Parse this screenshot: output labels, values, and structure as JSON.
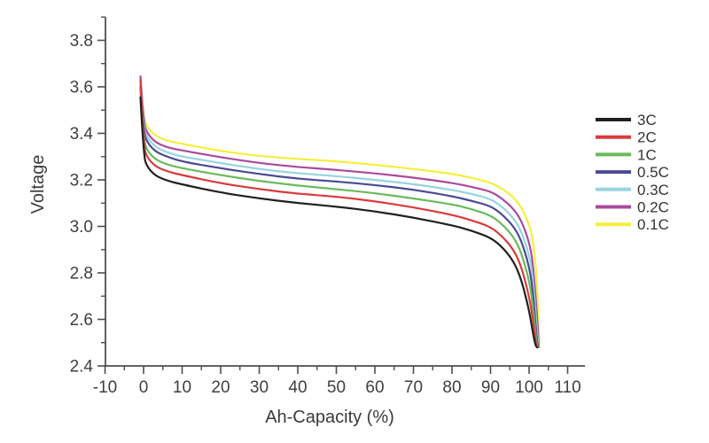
{
  "chart_data": {
    "type": "line",
    "title": "",
    "xlabel": "Ah-Capacity (%)",
    "ylabel": "Voltage",
    "xlim": [
      -10,
      114.5
    ],
    "ylim": [
      2.4,
      3.9
    ],
    "x_ticks": [
      -10,
      0,
      10,
      20,
      30,
      40,
      50,
      60,
      70,
      80,
      90,
      100,
      110
    ],
    "x_minor_step": 5,
    "y_ticks": [
      2.4,
      2.6,
      2.8,
      3.0,
      3.2,
      3.4,
      3.6,
      3.8
    ],
    "y_minor_step": 0.1,
    "grid": false,
    "legend_position": "right",
    "axis_color": "#4d4d4d",
    "series": [
      {
        "name": "3C",
        "color": "#231f20",
        "points": [
          [
            -0.8,
            3.555
          ],
          [
            0,
            3.3
          ],
          [
            1,
            3.255
          ],
          [
            3,
            3.218
          ],
          [
            6,
            3.197
          ],
          [
            10,
            3.18
          ],
          [
            20,
            3.145
          ],
          [
            30,
            3.12
          ],
          [
            40,
            3.1
          ],
          [
            50,
            3.085
          ],
          [
            60,
            3.065
          ],
          [
            70,
            3.038
          ],
          [
            80,
            3.005
          ],
          [
            85,
            2.982
          ],
          [
            90,
            2.952
          ],
          [
            93,
            2.912
          ],
          [
            96,
            2.85
          ],
          [
            98,
            2.772
          ],
          [
            100,
            2.64
          ],
          [
            100.8,
            2.56
          ],
          [
            101.6,
            2.49
          ],
          [
            102.05,
            2.48
          ]
        ]
      },
      {
        "name": "2C",
        "color": "#d83b3c",
        "points": [
          [
            -0.8,
            3.63
          ],
          [
            0,
            3.34
          ],
          [
            1,
            3.295
          ],
          [
            3,
            3.258
          ],
          [
            6,
            3.237
          ],
          [
            10,
            3.22
          ],
          [
            20,
            3.185
          ],
          [
            30,
            3.16
          ],
          [
            40,
            3.14
          ],
          [
            50,
            3.128
          ],
          [
            60,
            3.108
          ],
          [
            70,
            3.082
          ],
          [
            80,
            3.05
          ],
          [
            85,
            3.027
          ],
          [
            90,
            2.998
          ],
          [
            93,
            2.958
          ],
          [
            96,
            2.9
          ],
          [
            98,
            2.828
          ],
          [
            100,
            2.7
          ],
          [
            101,
            2.6
          ],
          [
            101.8,
            2.49
          ],
          [
            102.15,
            2.48
          ]
        ]
      },
      {
        "name": "1C",
        "color": "#6aba5c",
        "points": [
          [
            -0.8,
            3.58
          ],
          [
            0,
            3.37
          ],
          [
            1,
            3.325
          ],
          [
            3,
            3.288
          ],
          [
            6,
            3.266
          ],
          [
            10,
            3.25
          ],
          [
            20,
            3.22
          ],
          [
            30,
            3.195
          ],
          [
            40,
            3.175
          ],
          [
            50,
            3.16
          ],
          [
            60,
            3.143
          ],
          [
            70,
            3.12
          ],
          [
            80,
            3.095
          ],
          [
            85,
            3.075
          ],
          [
            90,
            3.048
          ],
          [
            93,
            3.01
          ],
          [
            96,
            2.955
          ],
          [
            98,
            2.888
          ],
          [
            100,
            2.77
          ],
          [
            101,
            2.66
          ],
          [
            101.9,
            2.5
          ],
          [
            102.25,
            2.48
          ]
        ]
      },
      {
        "name": "0.5C",
        "color": "#494a93",
        "points": [
          [
            -0.8,
            3.6
          ],
          [
            0,
            3.405
          ],
          [
            1,
            3.36
          ],
          [
            3,
            3.322
          ],
          [
            6,
            3.3
          ],
          [
            10,
            3.278
          ],
          [
            20,
            3.25
          ],
          [
            30,
            3.225
          ],
          [
            40,
            3.205
          ],
          [
            50,
            3.193
          ],
          [
            60,
            3.178
          ],
          [
            70,
            3.158
          ],
          [
            80,
            3.13
          ],
          [
            85,
            3.11
          ],
          [
            90,
            3.088
          ],
          [
            93,
            3.052
          ],
          [
            96,
            3.0
          ],
          [
            98,
            2.94
          ],
          [
            100,
            2.83
          ],
          [
            101,
            2.72
          ],
          [
            101.95,
            2.52
          ],
          [
            102.35,
            2.48
          ]
        ]
      },
      {
        "name": "0.3C",
        "color": "#98d4df",
        "points": [
          [
            -0.8,
            3.615
          ],
          [
            0,
            3.425
          ],
          [
            1,
            3.38
          ],
          [
            3,
            3.342
          ],
          [
            6,
            3.318
          ],
          [
            10,
            3.3
          ],
          [
            20,
            3.272
          ],
          [
            30,
            3.246
          ],
          [
            40,
            3.228
          ],
          [
            50,
            3.216
          ],
          [
            60,
            3.2
          ],
          [
            70,
            3.182
          ],
          [
            80,
            3.157
          ],
          [
            85,
            3.14
          ],
          [
            90,
            3.118
          ],
          [
            93,
            3.085
          ],
          [
            96,
            3.035
          ],
          [
            98,
            2.98
          ],
          [
            100,
            2.88
          ],
          [
            101,
            2.78
          ],
          [
            102,
            2.56
          ],
          [
            102.45,
            2.48
          ]
        ]
      },
      {
        "name": "0.2C",
        "color": "#a94a9d",
        "points": [
          [
            -0.8,
            3.645
          ],
          [
            0,
            3.445
          ],
          [
            1,
            3.4
          ],
          [
            3,
            3.362
          ],
          [
            6,
            3.34
          ],
          [
            10,
            3.326
          ],
          [
            20,
            3.297
          ],
          [
            30,
            3.272
          ],
          [
            40,
            3.255
          ],
          [
            50,
            3.243
          ],
          [
            60,
            3.228
          ],
          [
            70,
            3.21
          ],
          [
            80,
            3.187
          ],
          [
            85,
            3.17
          ],
          [
            90,
            3.151
          ],
          [
            93,
            3.12
          ],
          [
            96,
            3.075
          ],
          [
            98,
            3.025
          ],
          [
            100,
            2.935
          ],
          [
            101,
            2.845
          ],
          [
            102,
            2.63
          ],
          [
            102.55,
            2.48
          ]
        ]
      },
      {
        "name": "0.1C",
        "color": "#f4ef3b",
        "points": [
          [
            -0.8,
            3.6
          ],
          [
            0,
            3.47
          ],
          [
            1,
            3.425
          ],
          [
            3,
            3.39
          ],
          [
            6,
            3.368
          ],
          [
            10,
            3.355
          ],
          [
            20,
            3.324
          ],
          [
            30,
            3.302
          ],
          [
            40,
            3.29
          ],
          [
            50,
            3.28
          ],
          [
            60,
            3.265
          ],
          [
            70,
            3.247
          ],
          [
            80,
            3.226
          ],
          [
            85,
            3.21
          ],
          [
            90,
            3.188
          ],
          [
            93,
            3.163
          ],
          [
            96,
            3.125
          ],
          [
            98,
            3.082
          ],
          [
            100,
            3.01
          ],
          [
            101,
            2.945
          ],
          [
            102,
            2.79
          ],
          [
            102.65,
            2.48
          ]
        ]
      }
    ]
  }
}
